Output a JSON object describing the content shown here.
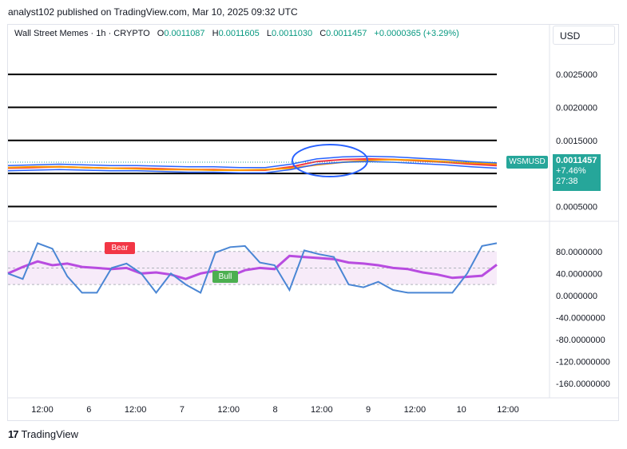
{
  "header": {
    "published": "analyst102 published on TradingView.com, Mar 10, 2025 09:32 UTC"
  },
  "legend": {
    "symbol": "Wall Street Memes · 1h · CRYPTO",
    "o_key": "O",
    "o_val": "0.0011087",
    "h_key": "H",
    "h_val": "0.0011605",
    "l_key": "L",
    "l_val": "0.0011030",
    "c_key": "C",
    "c_val": "0.0011457",
    "change": "+0.0000365 (+3.29%)"
  },
  "currency": "USD",
  "price_tag": {
    "symbol": "WSMUSD",
    "price": "0.0011457",
    "change_pct": "+7.46%",
    "countdown": "27:38"
  },
  "labels": {
    "bear": "Bear",
    "bull": "Bull"
  },
  "footer": {
    "brand": "TradingView",
    "logo": "17"
  },
  "colors": {
    "upper_band": "#2962ff",
    "ema_fast": "#f23645",
    "ema_slow": "#ff9800",
    "rsi_line": "#b84ce0",
    "stoch_line": "#4a86d4",
    "rsi_band_fill": "#f3e2f7",
    "accent_up": "#26a69a"
  },
  "chart_data": [
    {
      "type": "line",
      "name": "price",
      "y_ticks": [
        "0.0025000",
        "0.0020000",
        "0.0015000",
        "0.0005000"
      ],
      "ylim": [
        0.0003,
        0.0029
      ],
      "x_ticks": [
        "12:00",
        "6",
        "12:00",
        "7",
        "12:00",
        "8",
        "12:00",
        "9",
        "12:00",
        "10",
        "12:00"
      ],
      "horizontal_levels": [
        0.0025,
        0.002,
        0.0015,
        0.001,
        0.0005
      ],
      "series": [
        {
          "values": [
            0.00108,
            0.00109,
            0.0011,
            0.00109,
            0.00108,
            0.00108,
            0.00107,
            0.00106,
            0.00106,
            0.00105,
            0.00105,
            0.0011,
            0.00118,
            0.00121,
            0.00122,
            0.00121,
            0.00119,
            0.00117,
            0.00114,
            0.00112
          ]
        },
        {
          "values": [
            0.00109,
            0.0011,
            0.0011,
            0.00109,
            0.00108,
            0.00107,
            0.00106,
            0.00106,
            0.00105,
            0.00105,
            0.00106,
            0.00108,
            0.00113,
            0.00117,
            0.0012,
            0.00121,
            0.0012,
            0.00118,
            0.00116,
            0.00114
          ]
        }
      ]
    },
    {
      "type": "line",
      "name": "oscillator",
      "y_ticks": [
        "80.0000000",
        "40.0000000",
        "0.0000000",
        "-40.0000000",
        "-80.0000000",
        "-120.0000000",
        "-160.0000000"
      ],
      "ylim": [
        -170,
        100
      ],
      "band": [
        20,
        80
      ],
      "series": [
        {
          "values": [
            40,
            52,
            62,
            55,
            58,
            52,
            50,
            48,
            50,
            40,
            42,
            38,
            30,
            40,
            45,
            35,
            46,
            50,
            48,
            72,
            70,
            68,
            66,
            60,
            58,
            55,
            50,
            48,
            42,
            38,
            32,
            34,
            36,
            56
          ]
        },
        {
          "values": [
            40,
            30,
            95,
            85,
            35,
            5,
            5,
            50,
            58,
            40,
            5,
            40,
            20,
            5,
            78,
            88,
            90,
            60,
            55,
            10,
            82,
            75,
            70,
            20,
            15,
            25,
            10,
            5,
            5,
            5,
            5,
            40,
            90,
            95
          ]
        }
      ]
    }
  ]
}
